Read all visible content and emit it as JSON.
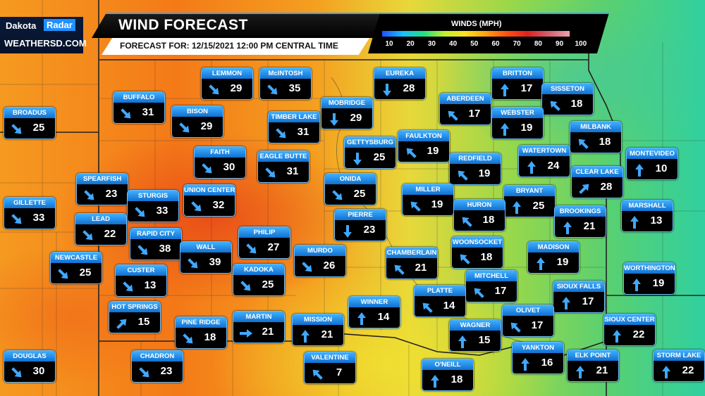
{
  "branding": {
    "line1": "Dakota",
    "line2": "Radar",
    "line3": "WEATHERSD.COM"
  },
  "header": {
    "title": "WIND FORECAST",
    "forecast_label": "FORECAST FOR:",
    "forecast_time": "12/15/2021 12:00 PM  CENTRAL TIME"
  },
  "legend": {
    "title": "WINDS (MPH)",
    "ticks": [
      "10",
      "20",
      "30",
      "40",
      "50",
      "60",
      "70",
      "80",
      "90",
      "100"
    ]
  },
  "stations": [
    {
      "name": "LEMMON",
      "speed": "29",
      "dir": "se"
    },
    {
      "name": "McINTOSH",
      "speed": "35",
      "dir": "se"
    },
    {
      "name": "EUREKA",
      "speed": "28",
      "dir": "s"
    },
    {
      "name": "BRITTON",
      "speed": "17",
      "dir": "n"
    },
    {
      "name": "SISSETON",
      "speed": "18",
      "dir": "nw"
    },
    {
      "name": "BUFFALO",
      "speed": "31",
      "dir": "se"
    },
    {
      "name": "BROADUS",
      "speed": "25",
      "dir": "se"
    },
    {
      "name": "BISON",
      "speed": "29",
      "dir": "se"
    },
    {
      "name": "TIMBER LAKE",
      "speed": "31",
      "dir": "se"
    },
    {
      "name": "MOBRIDGE",
      "speed": "29",
      "dir": "s"
    },
    {
      "name": "ABERDEEN",
      "speed": "17",
      "dir": "nw"
    },
    {
      "name": "WEBSTER",
      "speed": "19",
      "dir": "n"
    },
    {
      "name": "MILBANK",
      "speed": "18",
      "dir": "nw"
    },
    {
      "name": "FAITH",
      "speed": "30",
      "dir": "se"
    },
    {
      "name": "EAGLE BUTTE",
      "speed": "31",
      "dir": "se"
    },
    {
      "name": "GETTYSBURG",
      "speed": "25",
      "dir": "s"
    },
    {
      "name": "FAULKTON",
      "speed": "19",
      "dir": "nw"
    },
    {
      "name": "REDFIELD",
      "speed": "19",
      "dir": "nw"
    },
    {
      "name": "WATERTOWN",
      "speed": "24",
      "dir": "n"
    },
    {
      "name": "MONTEVIDEO",
      "speed": "10",
      "dir": "n"
    },
    {
      "name": "SPEARFISH",
      "speed": "23",
      "dir": "se"
    },
    {
      "name": "STURGIS",
      "speed": "33",
      "dir": "se"
    },
    {
      "name": "UNION CENTER",
      "speed": "32",
      "dir": "se"
    },
    {
      "name": "ONIDA",
      "speed": "25",
      "dir": "se"
    },
    {
      "name": "MILLER",
      "speed": "19",
      "dir": "nw"
    },
    {
      "name": "BRYANT",
      "speed": "25",
      "dir": "n"
    },
    {
      "name": "CLEAR LAKE",
      "speed": "28",
      "dir": "ne"
    },
    {
      "name": "GILLETTE",
      "speed": "33",
      "dir": "se"
    },
    {
      "name": "LEAD",
      "speed": "22",
      "dir": "se"
    },
    {
      "name": "PIERRE",
      "speed": "23",
      "dir": "s"
    },
    {
      "name": "HURON",
      "speed": "18",
      "dir": "nw"
    },
    {
      "name": "BROOKINGS",
      "speed": "21",
      "dir": "n"
    },
    {
      "name": "MARSHALL",
      "speed": "13",
      "dir": "n"
    },
    {
      "name": "RAPID CITY",
      "speed": "38",
      "dir": "se"
    },
    {
      "name": "PHILIP",
      "speed": "27",
      "dir": "se"
    },
    {
      "name": "WALL",
      "speed": "39",
      "dir": "se"
    },
    {
      "name": "NEWCASTLE",
      "speed": "25",
      "dir": "se"
    },
    {
      "name": "MURDO",
      "speed": "26",
      "dir": "se"
    },
    {
      "name": "CHAMBERLAIN",
      "speed": "21",
      "dir": "nw"
    },
    {
      "name": "WOONSOCKET",
      "speed": "18",
      "dir": "nw"
    },
    {
      "name": "MADISON",
      "speed": "19",
      "dir": "n"
    },
    {
      "name": "CUSTER",
      "speed": "13",
      "dir": "se"
    },
    {
      "name": "KADOKA",
      "speed": "25",
      "dir": "se"
    },
    {
      "name": "MITCHELL",
      "speed": "17",
      "dir": "nw"
    },
    {
      "name": "WORTHINGTON",
      "speed": "19",
      "dir": "n"
    },
    {
      "name": "PLATTE",
      "speed": "14",
      "dir": "nw"
    },
    {
      "name": "SIOUX FALLS",
      "speed": "17",
      "dir": "n"
    },
    {
      "name": "HOT SPRINGS",
      "speed": "15",
      "dir": "ne"
    },
    {
      "name": "WINNER",
      "speed": "14",
      "dir": "n"
    },
    {
      "name": "OLIVET",
      "speed": "17",
      "dir": "nw"
    },
    {
      "name": "PINE RIDGE",
      "speed": "18",
      "dir": "se"
    },
    {
      "name": "MARTIN",
      "speed": "21",
      "dir": "e"
    },
    {
      "name": "MISSION",
      "speed": "21",
      "dir": "n"
    },
    {
      "name": "WAGNER",
      "speed": "15",
      "dir": "n"
    },
    {
      "name": "SIOUX CENTER",
      "speed": "22",
      "dir": "n"
    },
    {
      "name": "YANKTON",
      "speed": "16",
      "dir": "n"
    },
    {
      "name": "DOUGLAS",
      "speed": "30",
      "dir": "se"
    },
    {
      "name": "CHADRON",
      "speed": "23",
      "dir": "se"
    },
    {
      "name": "VALENTINE",
      "speed": "7",
      "dir": "nw"
    },
    {
      "name": "O'NEILL",
      "speed": "18",
      "dir": "n"
    },
    {
      "name": "ELK POINT",
      "speed": "21",
      "dir": "n"
    },
    {
      "name": "STORM LAKE",
      "speed": "22",
      "dir": "n"
    }
  ]
}
